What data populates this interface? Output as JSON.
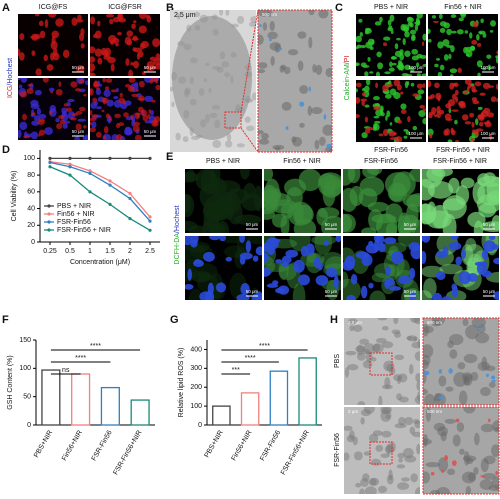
{
  "panels": {
    "A": {
      "panel_label": "A",
      "headers": [
        "ICG@FS",
        "ICG@FSR"
      ],
      "stain": [
        "ICG",
        "/Hochest"
      ],
      "scale": "50 μm"
    },
    "B": {
      "panel_label": "B",
      "scales": [
        "2.5 μm",
        "500 nm"
      ]
    },
    "C": {
      "panel_label": "C",
      "headers": [
        "PBS + NIR",
        "Fin56 + NIR"
      ],
      "footers": [
        "FSR-Fin56",
        "FSR-Fin56 + NIR"
      ],
      "stain": [
        "Calcein-AM",
        "/PI"
      ],
      "scale": "100 μm"
    },
    "E": {
      "panel_label": "E",
      "headers": [
        "PBS + NIR",
        "Fin56 + NIR",
        "FSR-Fin56",
        "FSR-Fin56 + NIR"
      ],
      "stain": [
        "DCFH-DA",
        "/Hochest"
      ],
      "scale": "50 μm"
    },
    "H": {
      "panel_label": "H",
      "rows": [
        "PBS",
        "FSR-Fin56"
      ],
      "scales": [
        "2.0 μm",
        "500 nm",
        "2 μm",
        "500 nm"
      ]
    }
  },
  "chart_data": [
    {
      "type": "line",
      "panel_label": "D",
      "xlabel": "Concentration (μM)",
      "ylabel": "Cell Viability (%)",
      "categories": [
        "0.25",
        "0.5",
        "1",
        "1.5",
        "2",
        "2.5"
      ],
      "series": [
        {
          "name": "PBS + NIR",
          "color": "#444444",
          "values": [
            100,
            100,
            100,
            100,
            100,
            100
          ]
        },
        {
          "name": "Fin56 + NIR",
          "color": "#f08080",
          "values": [
            96,
            93,
            85,
            73,
            58,
            30
          ]
        },
        {
          "name": "FSR-Fin56",
          "color": "#2f7fc1",
          "values": [
            95,
            90,
            82,
            68,
            52,
            25
          ]
        },
        {
          "name": "FSR-Fin56 + NIR",
          "color": "#1a8a7a",
          "values": [
            90,
            80,
            60,
            45,
            28,
            14
          ]
        }
      ],
      "ylim": [
        0,
        110
      ],
      "yticks": [
        0,
        20,
        40,
        60,
        80,
        100
      ],
      "legend": "lower left"
    },
    {
      "type": "bar",
      "panel_label": "F",
      "ylabel": "GSH Content (%)",
      "categories": [
        "PBS+NIR",
        "Fin56+NIR",
        "FSR-Fin56",
        "FSR-Fin56+NIR"
      ],
      "values": [
        97,
        90,
        66,
        44
      ],
      "colors": [
        "#444444",
        "#f08080",
        "#2f7fc1",
        "#1a8a7a"
      ],
      "ylim": [
        0,
        150
      ],
      "yticks": [
        0,
        50,
        100,
        150
      ],
      "annotations": [
        "ns",
        "****",
        "****"
      ]
    },
    {
      "type": "bar",
      "panel_label": "G",
      "ylabel": "Relative lipid ROS (%)",
      "categories": [
        "PBS+NIR",
        "Fin56+NIR",
        "FSR-Fin56",
        "FSR-Fin56+NIR"
      ],
      "values": [
        100,
        170,
        285,
        355
      ],
      "colors": [
        "#444444",
        "#f08080",
        "#2f7fc1",
        "#1a8a7a"
      ],
      "ylim": [
        0,
        450
      ],
      "yticks": [
        0,
        100,
        200,
        300,
        400
      ],
      "annotations": [
        "***",
        "****",
        "****"
      ]
    }
  ]
}
